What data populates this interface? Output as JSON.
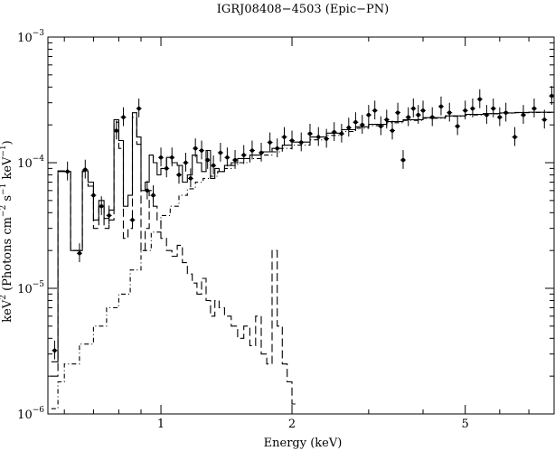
{
  "chart_data": {
    "type": "line",
    "title": "IGRJ08408−4503 (Epic−PN)",
    "xlabel": "Energy (keV)",
    "ylabel_parts": {
      "pre": "keV",
      "exp1": "2",
      "mid": " (Photons cm",
      "exp2": "−2",
      "mid2": " s",
      "exp3": "−1",
      "mid3": " keV",
      "exp4": "−1",
      "post": ")"
    },
    "x_scale": "log",
    "y_scale": "log",
    "xlim": [
      0.55,
      8.0
    ],
    "ylim": [
      1e-06,
      0.001
    ],
    "x_ticks": [
      {
        "value": 1,
        "label": "1"
      },
      {
        "value": 2,
        "label": "2"
      },
      {
        "value": 5,
        "label": "5"
      }
    ],
    "y_ticks": [
      {
        "value": 1e-06,
        "base": "10",
        "exp": "−6"
      },
      {
        "value": 1e-05,
        "base": "10",
        "exp": "−5"
      },
      {
        "value": 0.0001,
        "base": "10",
        "exp": "−4"
      },
      {
        "value": 0.001,
        "base": "10",
        "exp": "−3"
      }
    ],
    "grid": false,
    "legend": "none",
    "series": [
      {
        "style": "solid-step",
        "x": [
          0.56,
          0.58,
          0.6,
          0.62,
          0.64,
          0.66,
          0.68,
          0.7,
          0.72,
          0.74,
          0.76,
          0.78,
          0.8,
          0.82,
          0.84,
          0.86,
          0.88,
          0.9,
          0.92,
          0.94,
          0.96,
          0.98,
          1.0,
          1.03,
          1.06,
          1.09,
          1.12,
          1.15,
          1.18,
          1.21,
          1.24,
          1.27,
          1.3,
          1.33,
          1.36,
          1.4,
          1.45,
          1.5,
          1.6,
          1.7,
          1.8,
          1.9,
          2.0,
          2.2,
          2.4,
          2.6,
          2.8,
          3.0,
          3.3,
          3.6,
          4.0,
          4.5,
          5.0,
          5.5,
          6.0,
          6.5,
          7.0,
          7.5,
          8.0
        ],
        "y": [
          2.6e-06,
          8.6e-05,
          8.5e-05,
          2e-05,
          2e-05,
          8.6e-05,
          7e-05,
          3.5e-05,
          5e-05,
          3.6e-05,
          4.2e-05,
          0.00022,
          0.00015,
          4.5e-05,
          5.5e-05,
          0.00025,
          0.00016,
          6e-05,
          7e-05,
          0.000115,
          0.0001,
          8e-05,
          9e-05,
          0.00011,
          0.0001,
          9.5e-05,
          7e-05,
          8e-05,
          0.000115,
          0.0001,
          8.5e-05,
          0.000125,
          7.5e-05,
          9e-05,
          8.5e-05,
          9.5e-05,
          0.0001,
          0.000108,
          0.000115,
          0.000122,
          0.00013,
          0.000138,
          0.000146,
          0.00016,
          0.000172,
          0.000183,
          0.000193,
          0.000202,
          0.000212,
          0.00022,
          0.000228,
          0.000236,
          0.000242,
          0.000246,
          0.000249,
          0.000251,
          0.000252,
          0.000252,
          0.00025
        ]
      },
      {
        "style": "dashed-step",
        "x": [
          0.56,
          0.58,
          0.6,
          0.62,
          0.64,
          0.66,
          0.68,
          0.7,
          0.72,
          0.74,
          0.76,
          0.78,
          0.8,
          0.82,
          0.84,
          0.86,
          0.88,
          0.9,
          0.92,
          0.94,
          0.96,
          0.98,
          1.0,
          1.03,
          1.06,
          1.09,
          1.12,
          1.15,
          1.18,
          1.21,
          1.24,
          1.27,
          1.3,
          1.33,
          1.36,
          1.4,
          1.45,
          1.5,
          1.55,
          1.6,
          1.65,
          1.7,
          1.75,
          1.8,
          1.85,
          1.9,
          1.95,
          2.0
        ],
        "y": [
          2e-06,
          8.5e-05,
          8.5e-05,
          2e-05,
          2e-05,
          8.5e-05,
          6.5e-05,
          3e-05,
          4.5e-05,
          3e-05,
          3.5e-05,
          0.00021,
          0.00013,
          2.5e-05,
          3e-05,
          0.00023,
          0.00014,
          2e-05,
          3e-05,
          6e-05,
          4.5e-05,
          3.5e-05,
          2.5e-05,
          2e-05,
          1.8e-05,
          2.2e-05,
          1.6e-05,
          1.3e-05,
          1.1e-05,
          9e-06,
          1.2e-05,
          8e-06,
          6e-06,
          8e-06,
          7e-06,
          6e-06,
          5e-06,
          4e-06,
          5e-06,
          3.5e-06,
          6e-06,
          3e-06,
          2.5e-06,
          2e-05,
          5e-06,
          2.5e-06,
          1.8e-06,
          1.2e-06
        ]
      },
      {
        "style": "dotted-step",
        "x": [
          0.56,
          0.58,
          0.6,
          0.65,
          0.7,
          0.75,
          0.8,
          0.85,
          0.9,
          0.95,
          1.0,
          1.05,
          1.1,
          1.15,
          1.2,
          1.25,
          1.3,
          1.35,
          1.4,
          1.45,
          1.5,
          1.6,
          1.7,
          1.8,
          1.9,
          2.0,
          2.2,
          2.4,
          2.6,
          2.8,
          3.0,
          3.3,
          3.6,
          4.0,
          4.5,
          5.0,
          5.5,
          6.0,
          6.5,
          7.0,
          7.5,
          8.0
        ],
        "y": [
          1.1e-06,
          1.8e-06,
          2.5e-06,
          3.6e-06,
          5e-06,
          7e-06,
          9e-06,
          1.4e-05,
          2e-05,
          2.8e-05,
          3.8e-05,
          4.5e-05,
          5.5e-05,
          6.2e-05,
          7e-05,
          7.5e-05,
          7.8e-05,
          8.5e-05,
          9e-05,
          9.5e-05,
          0.0001,
          0.000108,
          0.000115,
          0.000122,
          0.00013,
          0.000138,
          0.000152,
          0.000165,
          0.000177,
          0.000188,
          0.000197,
          0.000208,
          0.000217,
          0.000226,
          0.000234,
          0.00024,
          0.000245,
          0.000248,
          0.00025,
          0.000251,
          0.000251,
          0.00025
        ]
      },
      {
        "style": "points-with-errorbars",
        "x": [
          0.57,
          0.61,
          0.65,
          0.67,
          0.7,
          0.73,
          0.76,
          0.79,
          0.82,
          0.86,
          0.89,
          0.93,
          0.96,
          1.0,
          1.03,
          1.06,
          1.1,
          1.14,
          1.17,
          1.2,
          1.24,
          1.28,
          1.32,
          1.37,
          1.42,
          1.48,
          1.55,
          1.62,
          1.7,
          1.78,
          1.85,
          1.92,
          2.0,
          2.1,
          2.2,
          2.3,
          2.4,
          2.5,
          2.6,
          2.7,
          2.8,
          2.9,
          3.0,
          3.1,
          3.2,
          3.3,
          3.4,
          3.5,
          3.6,
          3.7,
          3.8,
          3.9,
          4.0,
          4.2,
          4.4,
          4.6,
          4.8,
          5.0,
          5.2,
          5.4,
          5.6,
          5.8,
          6.0,
          6.2,
          6.5,
          6.8,
          7.2,
          7.6,
          7.9
        ],
        "y": [
          3.2e-06,
          8.5e-05,
          1.9e-05,
          8.8e-05,
          5.5e-05,
          4.5e-05,
          3.8e-05,
          0.00018,
          0.00023,
          3.5e-05,
          0.00027,
          6e-05,
          5.5e-05,
          0.00011,
          9e-05,
          0.00011,
          8e-05,
          0.0001,
          7.5e-05,
          0.00013,
          0.000125,
          0.000105,
          9.5e-05,
          0.00012,
          0.00011,
          0.000105,
          0.000115,
          0.000125,
          0.00012,
          0.000145,
          0.00013,
          0.00016,
          0.00015,
          0.000145,
          0.00017,
          0.00016,
          0.000155,
          0.000175,
          0.00017,
          0.00019,
          0.00021,
          0.0002,
          0.00024,
          0.00026,
          0.000195,
          0.00022,
          0.00018,
          0.00025,
          0.000105,
          0.00023,
          0.00027,
          0.00024,
          0.00026,
          0.00023,
          0.00028,
          0.00025,
          0.000195,
          0.00026,
          0.00027,
          0.00032,
          0.00024,
          0.00027,
          0.00023,
          0.00025,
          0.00016,
          0.00024,
          0.00027,
          0.00022,
          0.00034
        ],
        "err_lo": 0.85,
        "err_hi": 1.2
      }
    ]
  }
}
